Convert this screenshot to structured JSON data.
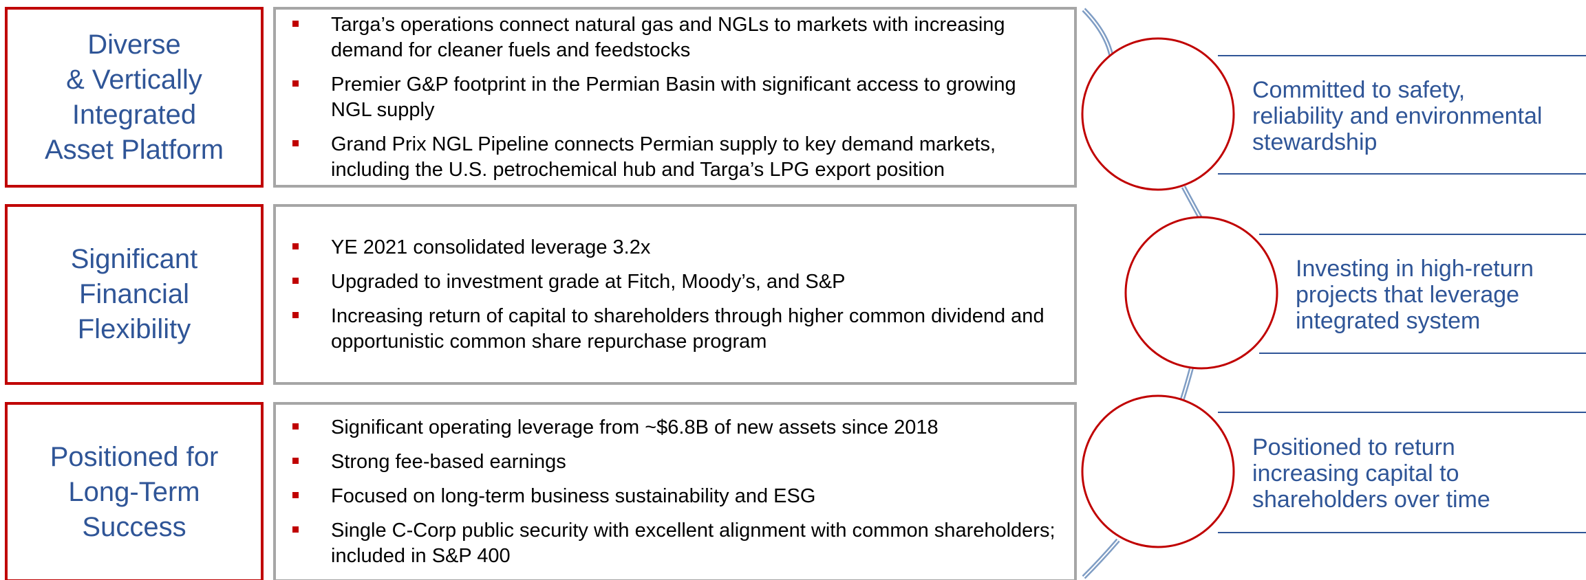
{
  "rows": [
    {
      "label": [
        "Diverse",
        "& Vertically",
        "Integrated",
        "Asset Platform"
      ],
      "bullets": [
        "Targa’s operations connect natural gas and NGLs to markets with increasing demand for cleaner fuels and feedstocks",
        "Premier G&P footprint in the Permian Basin with significant access to growing NGL supply",
        "Grand Prix NGL Pipeline connects Permian supply to key demand markets, including the U.S. petrochemical hub and Targa’s LPG export position"
      ]
    },
    {
      "label": [
        "Significant",
        "Financial",
        "Flexibility"
      ],
      "bullets": [
        "YE 2021 consolidated leverage 3.2x",
        "Upgraded to investment grade at Fitch, Moody’s, and S&P",
        "Increasing return of capital to shareholders through higher common dividend and opportunistic common share repurchase program"
      ]
    },
    {
      "label": [
        "Positioned for",
        "Long-Term",
        "Success"
      ],
      "bullets": [
        "Significant operating leverage from ~$6.8B of new assets since 2018",
        "Strong fee-based earnings",
        "Focused on long-term business sustainability and ESG",
        "Single C-Corp public security with excellent alignment with common shareholders; included in S&P 400"
      ]
    }
  ],
  "pillars": [
    [
      "Committed to safety,",
      "reliability and environmental",
      "stewardship"
    ],
    [
      "Investing in high-return",
      "projects that leverage",
      "integrated system"
    ],
    [
      "Positioned to return",
      "increasing capital to",
      "shareholders over time"
    ]
  ]
}
